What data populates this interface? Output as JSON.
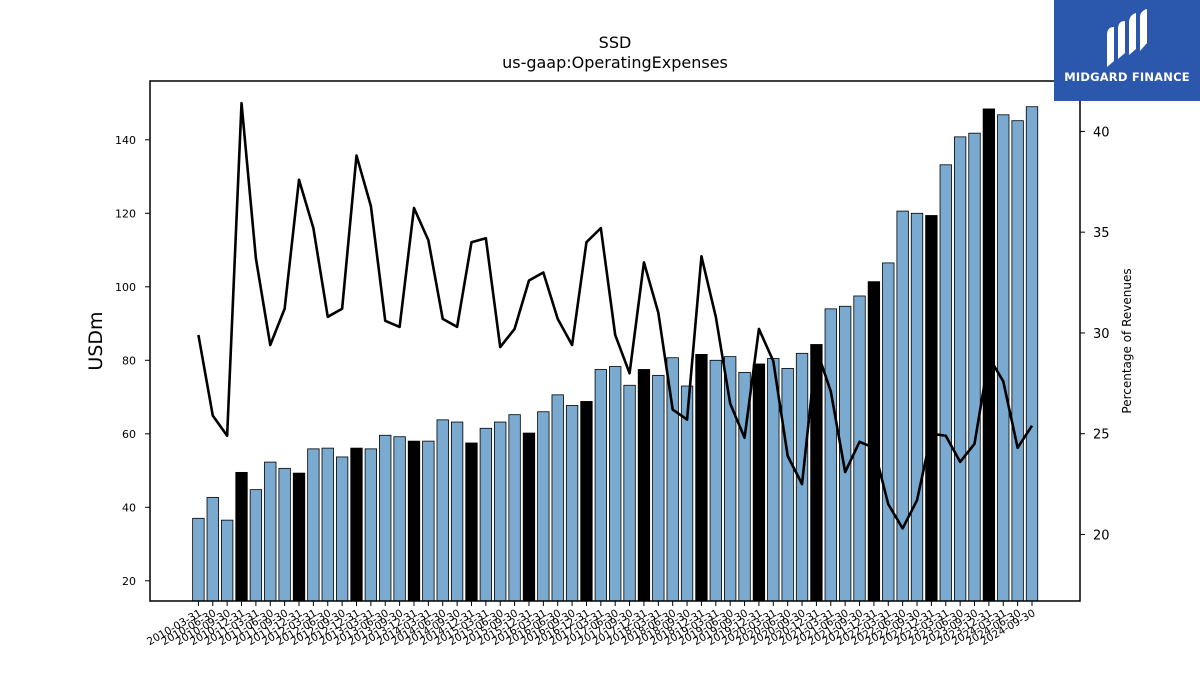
{
  "brand": {
    "name": "MIDGARD FINANCE",
    "background": "#2b57ad"
  },
  "chart_data": {
    "type": "bar",
    "title": "SSD",
    "subtitle": "us-gaap:OperatingExpenses",
    "ylabel": "USDm",
    "y2label": "Percentage of Revenues",
    "ylim": [
      14.5,
      156
    ],
    "y2lim": [
      16.7,
      42.5
    ],
    "yticks": [
      20,
      40,
      60,
      80,
      100,
      120,
      140
    ],
    "y2ticks": [
      20,
      25,
      30,
      35,
      40
    ],
    "colors": {
      "quarter_bar": "#7aaad0",
      "fiscal_year_end_bar": "#000000",
      "line": "#000000"
    },
    "categories": [
      "2010-03-31",
      "2010-06-30",
      "2010-09-30",
      "2010-12-31",
      "2011-03-31",
      "2011-06-30",
      "2011-09-30",
      "2011-12-31",
      "2012-03-31",
      "2012-06-30",
      "2012-09-30",
      "2012-12-31",
      "2013-03-31",
      "2013-06-30",
      "2013-09-30",
      "2013-12-31",
      "2014-03-31",
      "2014-06-30",
      "2014-09-30",
      "2014-12-31",
      "2015-03-31",
      "2015-06-30",
      "2015-09-30",
      "2015-12-31",
      "2016-03-31",
      "2016-06-30",
      "2016-09-30",
      "2016-12-31",
      "2017-03-31",
      "2017-06-30",
      "2017-09-30",
      "2017-12-31",
      "2018-03-31",
      "2018-06-30",
      "2018-09-30",
      "2018-12-31",
      "2019-03-31",
      "2019-06-30",
      "2019-09-30",
      "2019-12-31",
      "2020-03-31",
      "2020-06-30",
      "2020-09-30",
      "2020-12-31",
      "2021-03-31",
      "2021-06-30",
      "2021-09-30",
      "2021-12-31",
      "2022-03-31",
      "2022-06-30",
      "2022-09-30",
      "2022-12-31",
      "2023-03-31",
      "2023-06-30",
      "2023-09-30",
      "2023-12-31",
      "2024-03-31",
      "2024-06-30",
      "2024-09-30"
    ],
    "series": [
      {
        "kind": "bar",
        "values": [
          37.0,
          42.7,
          36.5,
          49.5,
          44.8,
          52.3,
          50.6,
          49.3,
          55.9,
          56.1,
          53.7,
          56.1,
          55.9,
          59.6,
          59.2,
          58.0,
          58.0,
          63.8,
          63.2,
          57.5,
          61.5,
          63.2,
          65.2,
          60.2,
          66.0,
          70.6,
          67.7,
          68.8,
          77.5,
          78.3,
          73.2,
          77.5,
          75.9,
          80.7,
          73.0,
          81.6,
          80.0,
          81.0,
          76.7,
          79.0,
          80.5,
          77.8,
          81.9,
          84.3,
          94.0,
          94.7,
          97.5,
          101.4,
          106.5,
          120.6,
          120.0,
          119.4,
          133.2,
          140.8,
          141.8,
          148.4,
          146.8,
          145.2,
          149.0
        ],
        "fiscal_year_end": [
          false,
          false,
          false,
          true,
          false,
          false,
          false,
          true,
          false,
          false,
          false,
          true,
          false,
          false,
          false,
          true,
          false,
          false,
          false,
          true,
          false,
          false,
          false,
          true,
          false,
          false,
          false,
          true,
          false,
          false,
          false,
          true,
          false,
          false,
          false,
          true,
          false,
          false,
          false,
          true,
          false,
          false,
          false,
          true,
          false,
          false,
          false,
          true,
          false,
          false,
          false,
          true,
          false,
          false,
          false,
          true,
          false,
          false,
          false
        ]
      },
      {
        "kind": "line",
        "axis": "right",
        "values": [
          29.9,
          25.9,
          24.9,
          41.4,
          33.7,
          29.4,
          31.2,
          37.6,
          35.2,
          30.8,
          31.2,
          38.8,
          36.3,
          30.6,
          30.3,
          36.2,
          34.6,
          30.7,
          30.3,
          34.5,
          34.7,
          29.3,
          30.2,
          32.6,
          33.0,
          30.7,
          29.4,
          34.5,
          35.2,
          29.9,
          28.0,
          33.5,
          31.0,
          26.2,
          25.7,
          33.8,
          30.8,
          26.5,
          24.8,
          30.2,
          28.6,
          23.9,
          22.5,
          29.2,
          27.1,
          23.1,
          24.6,
          24.3,
          21.5,
          20.3,
          21.7,
          25.0,
          24.9,
          23.6,
          24.5,
          28.8,
          27.6,
          24.3,
          25.4
        ]
      }
    ]
  }
}
